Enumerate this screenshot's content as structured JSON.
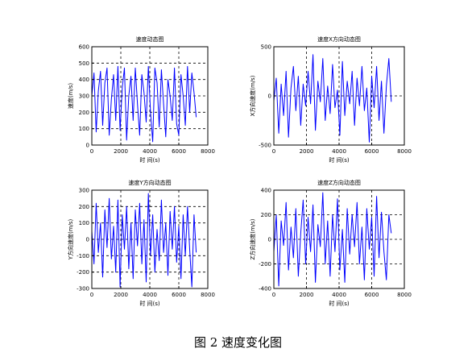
{
  "figure_caption": "图 2  速度变化图",
  "colors": {
    "series": "#0000ff",
    "axes": "#000000",
    "grid": "#000000",
    "background": "#ffffff"
  },
  "chart_data": [
    {
      "type": "line",
      "title": "速度动态图",
      "xlabel": "时 间(s)",
      "ylabel": "速度(m/s)",
      "xlim": [
        0,
        8000
      ],
      "ylim": [
        0,
        600
      ],
      "xticks": [
        "0",
        "2000",
        "4000",
        "6000",
        "8000"
      ],
      "yticks": [
        "0",
        "100",
        "200",
        "300",
        "400",
        "500",
        "600"
      ],
      "grid": true,
      "x": [
        0,
        150,
        300,
        450,
        600,
        750,
        900,
        1050,
        1200,
        1350,
        1500,
        1650,
        1800,
        1950,
        2100,
        2250,
        2400,
        2550,
        2700,
        2850,
        3000,
        3150,
        3300,
        3450,
        3600,
        3750,
        3900,
        4050,
        4200,
        4350,
        4500,
        4650,
        4800,
        4950,
        5100,
        5250,
        5400,
        5550,
        5700,
        5850,
        6000,
        6150,
        6300,
        6450,
        6600,
        6750,
        6900,
        7050,
        7200
      ],
      "series": [
        {
          "values": [
            300,
            440,
            80,
            330,
            450,
            120,
            380,
            470,
            60,
            280,
            430,
            150,
            480,
            90,
            350,
            470,
            30,
            300,
            420,
            150,
            470,
            250,
            60,
            430,
            320,
            140,
            480,
            200,
            20,
            470,
            380,
            110,
            460,
            250,
            50,
            400,
            300,
            150,
            470,
            130,
            60,
            430,
            300,
            120,
            480,
            200,
            440,
            320,
            170
          ]
        }
      ]
    },
    {
      "type": "line",
      "title": "速度X方向动态图",
      "xlabel": "时 间(s)",
      "ylabel": "X方向速度(m/s)",
      "xlim": [
        0,
        8000
      ],
      "ylim": [
        -500,
        500
      ],
      "xticks": [
        "0",
        "2000",
        "4000",
        "6000",
        "8000"
      ],
      "yticks": [
        "-500",
        "0",
        "500"
      ],
      "grid": true,
      "x": [
        0,
        150,
        300,
        450,
        600,
        750,
        900,
        1050,
        1200,
        1350,
        1500,
        1650,
        1800,
        1950,
        2100,
        2250,
        2400,
        2550,
        2700,
        2850,
        3000,
        3150,
        3300,
        3450,
        3600,
        3750,
        3900,
        4050,
        4200,
        4350,
        4500,
        4650,
        4800,
        4950,
        5100,
        5250,
        5400,
        5550,
        5700,
        5850,
        6000,
        6150,
        6300,
        6450,
        6600,
        6750,
        6900,
        7050,
        7200
      ],
      "series": [
        {
          "values": [
            -50,
            180,
            -380,
            120,
            -200,
            250,
            -420,
            80,
            300,
            -150,
            200,
            -300,
            120,
            -100,
            250,
            -80,
            420,
            -350,
            150,
            -60,
            380,
            -250,
            100,
            -180,
            320,
            -120,
            60,
            -400,
            350,
            -200,
            150,
            -80,
            250,
            -300,
            180,
            -100,
            300,
            -150,
            80,
            -470,
            200,
            -120,
            300,
            -250,
            150,
            -380,
            100,
            380,
            -60
          ]
        }
      ]
    },
    {
      "type": "line",
      "title": "速度Y方向动态图",
      "xlabel": "时 间(s)",
      "ylabel": "Y方向速度(m/s)",
      "xlim": [
        0,
        8000
      ],
      "ylim": [
        -300,
        300
      ],
      "xticks": [
        "0",
        "2000",
        "4000",
        "6000",
        "8000"
      ],
      "yticks": [
        "-300",
        "-200",
        "-100",
        "0",
        "100",
        "200",
        "300"
      ],
      "grid": true,
      "x": [
        0,
        150,
        300,
        450,
        600,
        750,
        900,
        1050,
        1200,
        1350,
        1500,
        1650,
        1800,
        1950,
        2100,
        2250,
        2400,
        2550,
        2700,
        2850,
        3000,
        3150,
        3300,
        3450,
        3600,
        3750,
        3900,
        4050,
        4200,
        4350,
        4500,
        4650,
        4800,
        4950,
        5100,
        5250,
        5400,
        5550,
        5700,
        5850,
        6000,
        6150,
        6300,
        6450,
        6600,
        6750,
        6900,
        7050,
        7200
      ],
      "series": [
        {
          "values": [
            50,
            -150,
            220,
            -80,
            100,
            -230,
            180,
            -50,
            250,
            -120,
            80,
            -200,
            240,
            -290,
            150,
            -60,
            200,
            -180,
            100,
            -240,
            180,
            -40,
            220,
            -150,
            120,
            -260,
            280,
            -100,
            150,
            -200,
            60,
            -130,
            240,
            -80,
            100,
            -220,
            170,
            -60,
            200,
            -140,
            80,
            -240,
            150,
            -100,
            200,
            -60,
            -290,
            150,
            -80
          ]
        }
      ]
    },
    {
      "type": "line",
      "title": "速度Z方向动态图",
      "xlabel": "时 间(s)",
      "ylabel": "Z方向速度(m/s)",
      "xlim": [
        0,
        8000
      ],
      "ylim": [
        -400,
        400
      ],
      "xticks": [
        "0",
        "2000",
        "4000",
        "6000",
        "8000"
      ],
      "yticks": [
        "-400",
        "-200",
        "0",
        "200",
        "400"
      ],
      "grid": true,
      "x": [
        0,
        150,
        300,
        450,
        600,
        750,
        900,
        1050,
        1200,
        1350,
        1500,
        1650,
        1800,
        1950,
        2100,
        2250,
        2400,
        2550,
        2700,
        2850,
        3000,
        3150,
        3300,
        3450,
        3600,
        3750,
        3900,
        4050,
        4200,
        4350,
        4500,
        4650,
        4800,
        4950,
        5100,
        5250,
        5400,
        5550,
        5700,
        5850,
        6000,
        6150,
        6300,
        6450,
        6600,
        6750,
        6900,
        7050,
        7200
      ],
      "series": [
        {
          "values": [
            -100,
            200,
            -380,
            150,
            -50,
            300,
            -250,
            100,
            -150,
            250,
            -300,
            50,
            320,
            -200,
            180,
            -100,
            280,
            -350,
            120,
            -60,
            380,
            -200,
            150,
            -300,
            200,
            -100,
            330,
            -250,
            80,
            -350,
            250,
            -120,
            200,
            -60,
            300,
            -200,
            100,
            -330,
            250,
            -80,
            180,
            -300,
            350,
            -150,
            220,
            -100,
            -330,
            200,
            50
          ]
        }
      ]
    }
  ]
}
